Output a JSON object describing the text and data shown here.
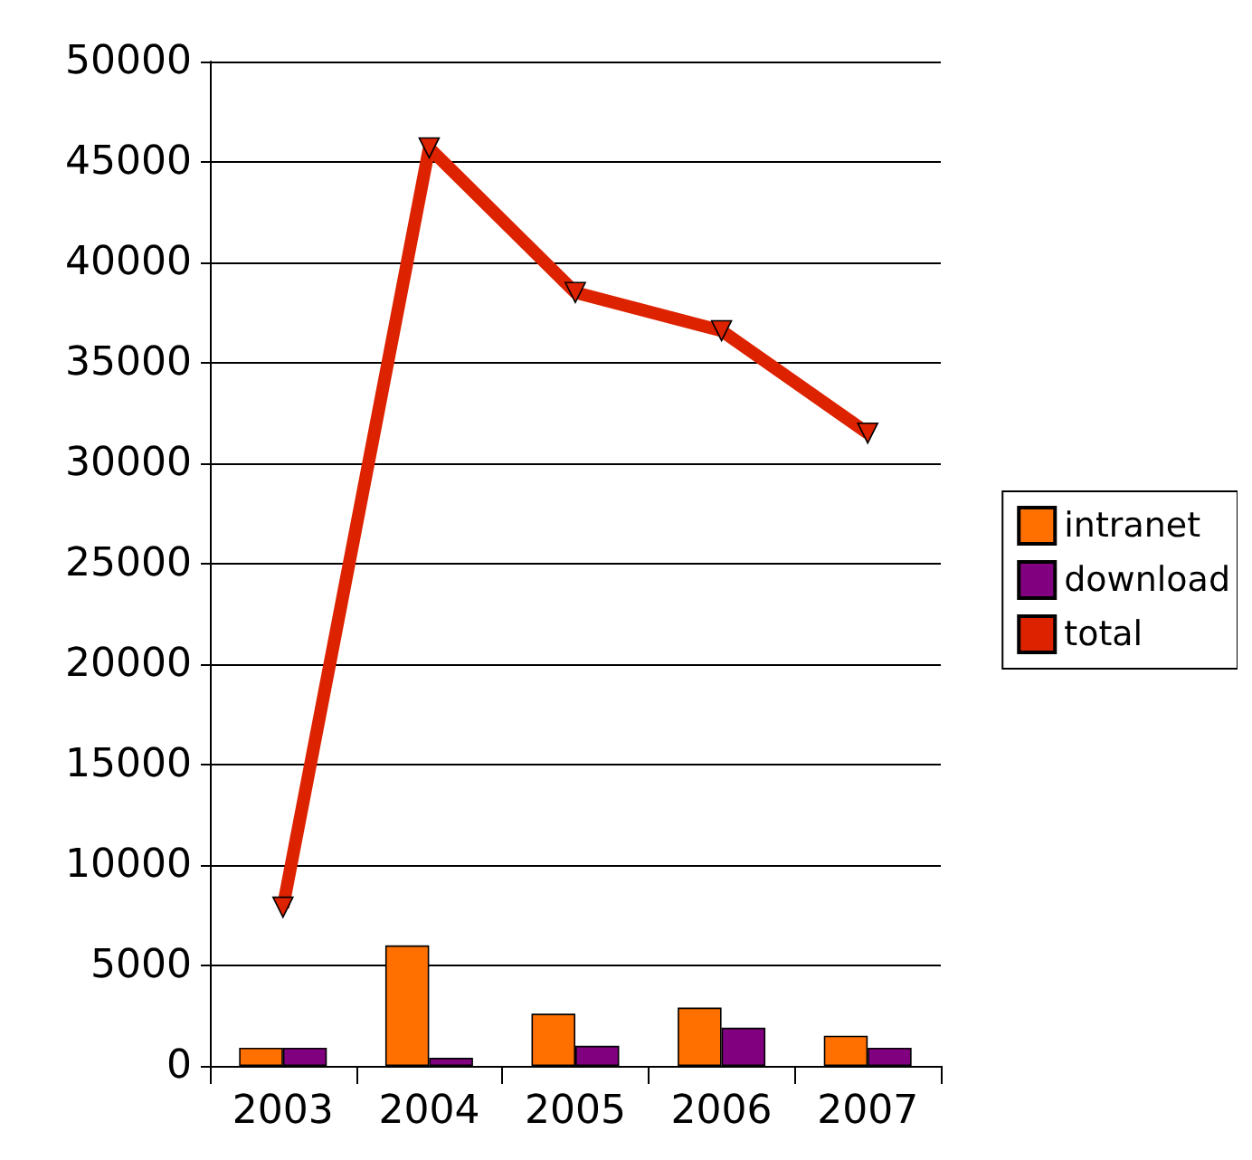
{
  "chart_data": {
    "type": "bar",
    "categories": [
      "2003",
      "2004",
      "2005",
      "2006",
      "2007"
    ],
    "series": [
      {
        "name": "intranet",
        "color": "#ff7000",
        "values": [
          900,
          6000,
          2600,
          2900,
          1500
        ]
      },
      {
        "name": "download",
        "color": "#800080",
        "values": [
          900,
          400,
          1000,
          1900,
          900
        ]
      },
      {
        "name": "total",
        "type": "line",
        "color": "#dd2200",
        "marker": "triangle",
        "values": [
          7900,
          45700,
          38500,
          36600,
          31500
        ]
      }
    ],
    "ylim": [
      0,
      50000
    ],
    "yticks": [
      0,
      5000,
      10000,
      15000,
      20000,
      25000,
      30000,
      35000,
      40000,
      45000,
      50000
    ],
    "grid": "y",
    "legend": "right"
  }
}
